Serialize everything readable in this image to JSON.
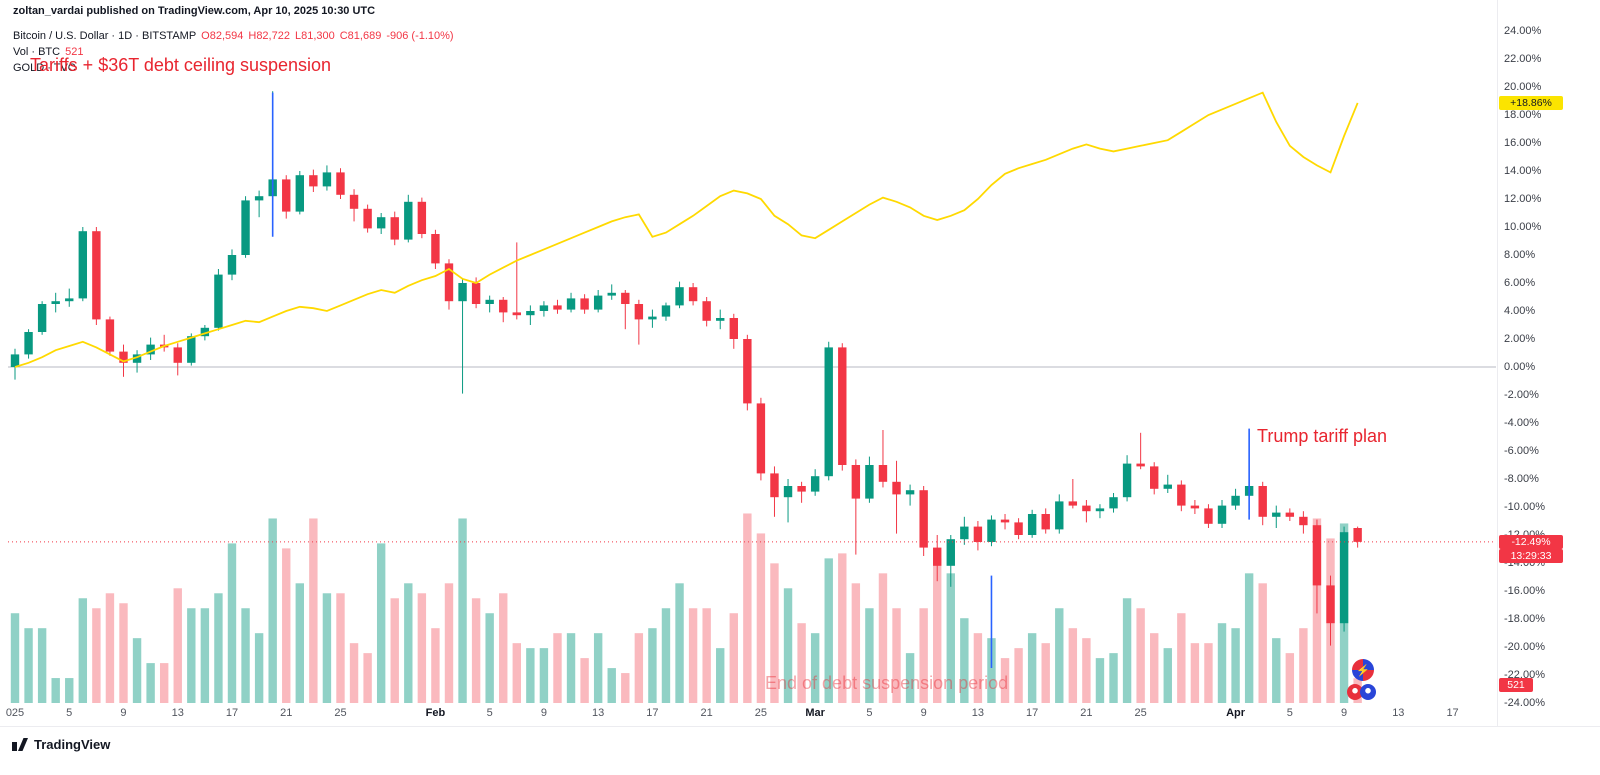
{
  "meta": {
    "publish_line": "zoltan_vardai published on TradingView.com, Apr 10, 2025 10:30 UTC"
  },
  "legend": {
    "symbol_line": "Bitcoin / U.S. Dollar · 1D · BITSTAMP",
    "ohlc": {
      "o": "O82,594",
      "h": "H82,722",
      "l": "L81,300",
      "c": "C81,689",
      "change": "-906 (-1.10%)"
    },
    "vol": {
      "label": "Vol · BTC",
      "value": "521"
    },
    "gold": {
      "label": "GOLD · TVC"
    }
  },
  "annotations": {
    "tariffs": "Tariffs + $36T debt ceiling suspension",
    "trump": "Trump tariff plan",
    "debt_end": "End of debt suspension period"
  },
  "badges": {
    "gold": "+18.86%",
    "price": "-12.49%",
    "countdown": "13:29:33",
    "volume": "521"
  },
  "watermark": "TradingView",
  "colors": {
    "up": "#089981",
    "down": "#f23645",
    "volume_up": "rgba(8,153,129,0.45)",
    "volume_down": "rgba(242,54,69,0.35)",
    "gold": "#ffd900",
    "gold_badge": "#fbe400",
    "event_line": "#2962ff",
    "annotation": "#e8252f"
  },
  "axes": {
    "y_labels": [
      "24.00%",
      "22.00%",
      "20.00%",
      "18.00%",
      "16.00%",
      "14.00%",
      "12.00%",
      "10.00%",
      "8.00%",
      "6.00%",
      "4.00%",
      "2.00%",
      "0.00%",
      "-2.00%",
      "-4.00%",
      "-6.00%",
      "-8.00%",
      "-10.00%",
      "-12.00%",
      "-14.00%",
      "-16.00%",
      "-18.00%",
      "-20.00%",
      "-22.00%",
      "-24.00%"
    ],
    "x_ticks": [
      {
        "label": "025",
        "day": 1
      },
      {
        "label": "5",
        "day": 5
      },
      {
        "label": "9",
        "day": 9
      },
      {
        "label": "13",
        "day": 13
      },
      {
        "label": "17",
        "day": 17
      },
      {
        "label": "21",
        "day": 21
      },
      {
        "label": "25",
        "day": 25
      },
      {
        "label": "Feb",
        "day": 32
      },
      {
        "label": "5",
        "day": 36
      },
      {
        "label": "9",
        "day": 40
      },
      {
        "label": "13",
        "day": 44
      },
      {
        "label": "17",
        "day": 48
      },
      {
        "label": "21",
        "day": 52
      },
      {
        "label": "25",
        "day": 56
      },
      {
        "label": "Mar",
        "day": 60
      },
      {
        "label": "5",
        "day": 64
      },
      {
        "label": "9",
        "day": 68
      },
      {
        "label": "13",
        "day": 72
      },
      {
        "label": "17",
        "day": 76
      },
      {
        "label": "21",
        "day": 80
      },
      {
        "label": "25",
        "day": 84
      },
      {
        "label": "Apr",
        "day": 91
      },
      {
        "label": "5",
        "day": 95
      },
      {
        "label": "9",
        "day": 99
      },
      {
        "label": "13",
        "day": 103
      },
      {
        "label": "17",
        "day": 107
      }
    ]
  },
  "chart_data": {
    "type": "candlestick",
    "title": "Bitcoin / U.S. Dollar (BITSTAMP, 1D) vs GOLD (TVC), % change",
    "start_date": "2025-01-01",
    "end_date": "2025-04-10",
    "frequency": "daily",
    "unit": "percent change since chart start",
    "ylim": [
      -24,
      24
    ],
    "last_price_pct": -12.49,
    "gold_last_pct": 18.86,
    "series": [
      {
        "name": "BTCUSD",
        "type": "candlestick",
        "ohlc_pct": [
          [
            0.0,
            1.3,
            -0.9,
            0.9
          ],
          [
            0.9,
            2.7,
            0.6,
            2.5
          ],
          [
            2.5,
            4.7,
            2.3,
            4.5
          ],
          [
            4.5,
            5.3,
            3.9,
            4.7
          ],
          [
            4.7,
            5.6,
            4.3,
            4.9
          ],
          [
            4.9,
            10.0,
            4.7,
            9.7
          ],
          [
            9.7,
            10.0,
            3.0,
            3.4
          ],
          [
            3.4,
            3.6,
            0.8,
            1.1
          ],
          [
            1.1,
            1.6,
            -0.7,
            0.3
          ],
          [
            0.3,
            1.2,
            -0.4,
            0.9
          ],
          [
            0.9,
            2.1,
            0.5,
            1.6
          ],
          [
            1.6,
            2.3,
            1.1,
            1.4
          ],
          [
            1.4,
            1.7,
            -0.6,
            0.3
          ],
          [
            0.3,
            2.4,
            0.1,
            2.2
          ],
          [
            2.2,
            3.0,
            1.9,
            2.8
          ],
          [
            2.8,
            7.0,
            2.6,
            6.6
          ],
          [
            6.6,
            8.4,
            6.2,
            8.0
          ],
          [
            8.0,
            12.2,
            7.8,
            11.9
          ],
          [
            11.9,
            12.6,
            10.7,
            12.2
          ],
          [
            12.2,
            19.7,
            11.8,
            13.4
          ],
          [
            13.4,
            13.7,
            10.6,
            11.1
          ],
          [
            11.1,
            14.0,
            10.9,
            13.7
          ],
          [
            13.7,
            14.1,
            12.5,
            12.9
          ],
          [
            12.9,
            14.4,
            12.6,
            13.9
          ],
          [
            13.9,
            14.2,
            12.0,
            12.3
          ],
          [
            12.3,
            12.7,
            10.4,
            11.3
          ],
          [
            11.3,
            11.6,
            9.6,
            9.9
          ],
          [
            9.9,
            11.0,
            9.5,
            10.7
          ],
          [
            10.7,
            11.1,
            8.7,
            9.1
          ],
          [
            9.1,
            12.3,
            8.9,
            11.8
          ],
          [
            11.8,
            12.1,
            9.2,
            9.5
          ],
          [
            9.5,
            9.8,
            7.0,
            7.4
          ],
          [
            7.4,
            7.7,
            4.1,
            4.7
          ],
          [
            4.7,
            6.3,
            -1.9,
            6.0
          ],
          [
            6.0,
            6.4,
            4.2,
            4.5
          ],
          [
            4.5,
            5.1,
            3.9,
            4.8
          ],
          [
            4.8,
            5.0,
            3.2,
            3.9
          ],
          [
            3.9,
            8.9,
            3.4,
            3.7
          ],
          [
            3.7,
            4.4,
            3.0,
            4.0
          ],
          [
            4.0,
            4.7,
            3.6,
            4.4
          ],
          [
            4.4,
            4.8,
            3.8,
            4.1
          ],
          [
            4.1,
            5.3,
            3.9,
            4.9
          ],
          [
            4.9,
            5.2,
            3.8,
            4.1
          ],
          [
            4.1,
            5.5,
            3.9,
            5.1
          ],
          [
            5.1,
            5.9,
            4.8,
            5.3
          ],
          [
            5.3,
            5.5,
            2.7,
            4.5
          ],
          [
            4.5,
            4.8,
            1.6,
            3.4
          ],
          [
            3.4,
            4.1,
            2.8,
            3.6
          ],
          [
            3.6,
            4.6,
            3.3,
            4.4
          ],
          [
            4.4,
            6.1,
            4.2,
            5.7
          ],
          [
            5.7,
            6.0,
            4.4,
            4.7
          ],
          [
            4.7,
            5.0,
            2.9,
            3.3
          ],
          [
            3.3,
            4.1,
            2.7,
            3.5
          ],
          [
            3.5,
            3.8,
            1.3,
            2.0
          ],
          [
            2.0,
            2.3,
            -3.1,
            -2.6
          ],
          [
            -2.6,
            -2.2,
            -8.1,
            -7.6
          ],
          [
            -7.6,
            -7.1,
            -10.7,
            -9.3
          ],
          [
            -9.3,
            -8.0,
            -11.1,
            -8.5
          ],
          [
            -8.5,
            -8.2,
            -9.7,
            -8.9
          ],
          [
            -8.9,
            -7.3,
            -9.2,
            -7.8
          ],
          [
            -7.8,
            1.8,
            -8.1,
            1.4
          ],
          [
            1.4,
            1.7,
            -7.4,
            -7.0
          ],
          [
            -7.0,
            -6.6,
            -13.4,
            -9.4
          ],
          [
            -9.4,
            -6.4,
            -9.7,
            -7.0
          ],
          [
            -7.0,
            -4.5,
            -8.6,
            -8.2
          ],
          [
            -8.2,
            -6.7,
            -11.9,
            -9.1
          ],
          [
            -9.1,
            -8.4,
            -9.9,
            -8.8
          ],
          [
            -8.8,
            -8.5,
            -13.5,
            -12.9
          ],
          [
            -12.9,
            -12.0,
            -15.3,
            -14.2
          ],
          [
            -14.2,
            -12.0,
            -15.7,
            -12.3
          ],
          [
            -12.3,
            -10.7,
            -12.7,
            -11.4
          ],
          [
            -11.4,
            -11.0,
            -13.1,
            -12.5
          ],
          [
            -12.5,
            -10.6,
            -12.8,
            -10.9
          ],
          [
            -10.9,
            -10.5,
            -11.6,
            -11.1
          ],
          [
            -11.1,
            -10.8,
            -12.3,
            -12.0
          ],
          [
            -12.0,
            -10.2,
            -12.2,
            -10.5
          ],
          [
            -10.5,
            -10.1,
            -11.9,
            -11.6
          ],
          [
            -11.6,
            -9.1,
            -11.9,
            -9.6
          ],
          [
            -9.6,
            -8.0,
            -10.1,
            -9.9
          ],
          [
            -9.9,
            -9.5,
            -11.1,
            -10.3
          ],
          [
            -10.3,
            -9.8,
            -10.8,
            -10.1
          ],
          [
            -10.1,
            -9.0,
            -10.4,
            -9.3
          ],
          [
            -9.3,
            -6.3,
            -9.6,
            -6.9
          ],
          [
            -6.9,
            -4.7,
            -7.3,
            -7.1
          ],
          [
            -7.1,
            -6.8,
            -9.1,
            -8.7
          ],
          [
            -8.7,
            -7.7,
            -9.0,
            -8.4
          ],
          [
            -8.4,
            -8.1,
            -10.3,
            -9.9
          ],
          [
            -9.9,
            -9.5,
            -10.5,
            -10.1
          ],
          [
            -10.1,
            -9.8,
            -11.5,
            -11.2
          ],
          [
            -11.2,
            -9.5,
            -11.5,
            -9.9
          ],
          [
            -9.9,
            -8.7,
            -10.2,
            -9.2
          ],
          [
            -9.2,
            -4.7,
            -9.5,
            -8.5
          ],
          [
            -8.5,
            -8.2,
            -11.3,
            -10.7
          ],
          [
            -10.7,
            -9.9,
            -11.5,
            -10.4
          ],
          [
            -10.4,
            -10.1,
            -11.0,
            -10.7
          ],
          [
            -10.7,
            -10.3,
            -11.9,
            -11.3
          ],
          [
            -11.3,
            -10.9,
            -17.6,
            -15.6
          ],
          [
            -15.6,
            -14.9,
            -19.9,
            -18.3
          ],
          [
            -18.3,
            -11.4,
            -18.9,
            -11.8
          ],
          [
            -11.5,
            -11.4,
            -12.9,
            -12.49
          ]
        ]
      },
      {
        "name": "Volume BTC",
        "type": "bar",
        "values": [
          1890,
          1575,
          1575,
          525,
          525,
          2205,
          1995,
          2310,
          2100,
          1365,
          840,
          840,
          2415,
          1995,
          1995,
          2310,
          3360,
          1995,
          1470,
          3885,
          3255,
          2520,
          3885,
          2310,
          2310,
          1260,
          1050,
          3360,
          2205,
          2520,
          2310,
          1575,
          2520,
          3885,
          2205,
          1890,
          2310,
          1260,
          1155,
          1155,
          1470,
          1470,
          945,
          1470,
          735,
          630,
          1470,
          1575,
          1995,
          2520,
          1995,
          1995,
          1155,
          1890,
          3990,
          3570,
          2940,
          2415,
          1680,
          1470,
          3045,
          3150,
          2520,
          1995,
          2730,
          1995,
          1050,
          1995,
          3045,
          2730,
          1785,
          1470,
          1365,
          945,
          1155,
          1470,
          1260,
          1995,
          1575,
          1365,
          945,
          1050,
          2205,
          1995,
          1470,
          1155,
          1890,
          1260,
          1260,
          1680,
          1575,
          2730,
          2520,
          1365,
          1050,
          1575,
          3885,
          3465,
          3780,
          521
        ]
      },
      {
        "name": "GOLD",
        "type": "line",
        "values_pct": [
          0.0,
          0.3,
          0.7,
          1.2,
          1.5,
          1.8,
          1.4,
          0.9,
          0.4,
          0.7,
          1.1,
          1.5,
          1.8,
          2.1,
          2.4,
          2.7,
          3.0,
          3.3,
          3.2,
          3.6,
          4.0,
          4.3,
          4.2,
          4.0,
          4.4,
          4.8,
          5.2,
          5.5,
          5.3,
          5.8,
          6.2,
          6.5,
          7.0,
          6.3,
          6.0,
          6.6,
          7.1,
          7.6,
          8.0,
          8.4,
          8.8,
          9.2,
          9.6,
          10.0,
          10.4,
          10.7,
          10.9,
          9.3,
          9.6,
          10.2,
          10.8,
          11.5,
          12.2,
          12.6,
          12.4,
          12.0,
          10.8,
          10.2,
          9.4,
          9.2,
          9.8,
          10.4,
          11.0,
          11.6,
          12.1,
          11.8,
          11.4,
          10.8,
          10.5,
          10.8,
          11.2,
          12.0,
          13.0,
          13.8,
          14.2,
          14.5,
          14.8,
          15.2,
          15.6,
          15.9,
          15.6,
          15.4,
          15.6,
          15.8,
          16.0,
          16.2,
          16.8,
          17.4,
          18.0,
          18.4,
          18.8,
          19.2,
          19.6,
          17.5,
          15.8,
          15.0,
          14.4,
          13.9,
          16.5,
          18.86
        ]
      }
    ],
    "event_lines": [
      {
        "day": 20,
        "from_pct": 19.6,
        "to_pct": 9.3
      },
      {
        "day": 73,
        "from_pct": -14.9,
        "to_pct": -21.5
      },
      {
        "day": 92,
        "from_pct": -4.4,
        "to_pct": -10.9
      }
    ]
  }
}
